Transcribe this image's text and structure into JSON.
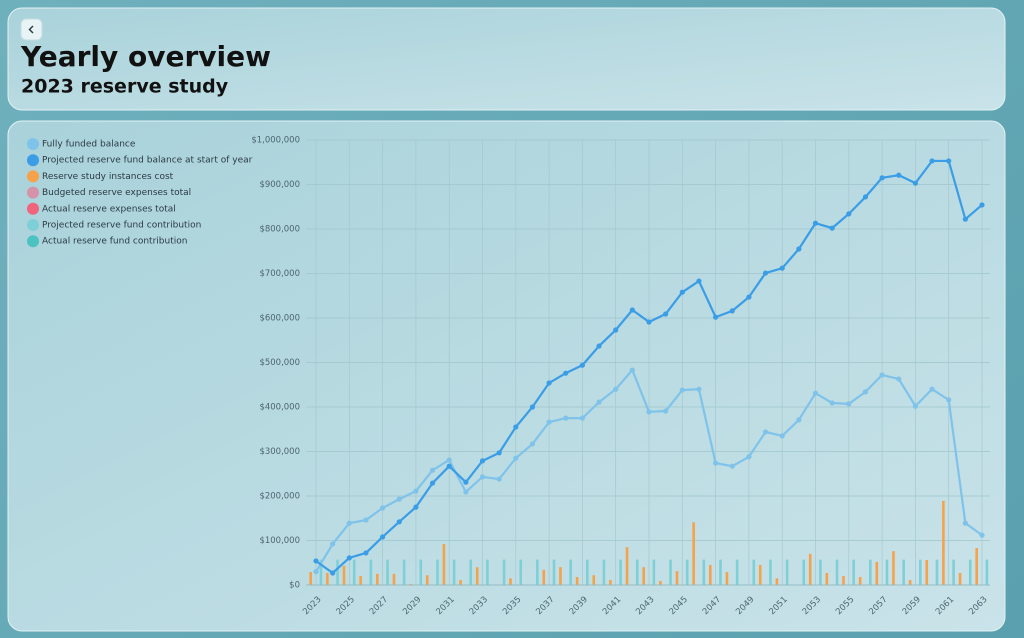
{
  "header": {
    "title": "Yearly overview",
    "subtitle": "2023 reserve study"
  },
  "chart_data": {
    "type": "bar-line",
    "categories": [
      "2023",
      null,
      "2025",
      null,
      "2027",
      null,
      "2029",
      null,
      "2031",
      null,
      "2033",
      null,
      "2035",
      null,
      "2037",
      null,
      "2039",
      null,
      "2041",
      null,
      "2043",
      null,
      "2045",
      null,
      "2047",
      null,
      "2049",
      null,
      "2051",
      null,
      "2053",
      null,
      "2055",
      null,
      "2057",
      null,
      "2059",
      null,
      "2061",
      null,
      "2063"
    ],
    "series": [
      {
        "name": "Fully funded balance",
        "kind": "line",
        "color": "#7fc3ea",
        "values": [
          30000,
          92000,
          139000,
          146000,
          173000,
          193000,
          211000,
          258000,
          281000,
          209000,
          243000,
          238000,
          285000,
          317000,
          366000,
          375000,
          375000,
          411000,
          440000,
          483000,
          389000,
          391000,
          438000,
          440000,
          274000,
          267000,
          288000,
          344000,
          335000,
          371000,
          431000,
          409000,
          407000,
          434000,
          472000,
          463000,
          402000,
          440000,
          416000,
          139000,
          112000
        ]
      },
      {
        "name": "Projected reserve fund balance at start of year",
        "kind": "line",
        "color": "#3a9de6",
        "values": [
          54000,
          27000,
          61000,
          72000,
          108000,
          142000,
          175000,
          229000,
          267000,
          231000,
          279000,
          297000,
          355000,
          400000,
          454000,
          476000,
          494000,
          537000,
          573000,
          618000,
          591000,
          609000,
          658000,
          683000,
          602000,
          616000,
          647000,
          701000,
          712000,
          755000,
          813000,
          802000,
          834000,
          872000,
          915000,
          921000,
          903000,
          953000,
          953000,
          822000,
          854000
        ]
      },
      {
        "name": "Reserve study instances cost",
        "kind": "bar",
        "color": "#f6a24a",
        "values": [
          29000,
          27000,
          43000,
          20000,
          25000,
          25000,
          2000,
          22000,
          92000,
          11000,
          40000,
          null,
          15000,
          null,
          34000,
          40000,
          18000,
          22000,
          11000,
          85000,
          40000,
          9000,
          31000,
          141000,
          45000,
          29000,
          null,
          45000,
          15000,
          null,
          70000,
          27000,
          20000,
          18000,
          52000,
          76000,
          11000,
          56000,
          189000,
          27000,
          83000
        ]
      },
      {
        "name": "Budgeted reserve expenses total",
        "kind": "bar",
        "color": "#d493a8",
        "values": [
          null,
          null,
          null,
          null,
          null,
          null,
          null,
          null,
          null,
          null,
          null,
          null,
          null,
          null,
          null,
          null,
          null,
          null,
          null,
          null,
          null,
          null,
          null,
          null,
          null,
          null,
          null,
          null,
          null,
          null,
          null,
          null,
          null,
          null,
          null,
          null,
          null,
          null,
          null,
          null,
          null
        ]
      },
      {
        "name": "Actual reserve expenses total",
        "kind": "bar",
        "color": "#f0647c",
        "values": [
          null,
          null,
          null,
          null,
          null,
          null,
          null,
          null,
          null,
          null,
          null,
          null,
          null,
          null,
          null,
          null,
          null,
          null,
          null,
          null,
          null,
          null,
          null,
          null,
          null,
          null,
          null,
          null,
          null,
          null,
          null,
          null,
          null,
          null,
          null,
          null,
          null,
          null,
          null,
          null,
          null
        ]
      },
      {
        "name": "Projected reserve fund contribution",
        "kind": "bar",
        "color": "#7fd0d6",
        "values": [
          57000,
          57000,
          57000,
          57000,
          57000,
          57000,
          57000,
          57000,
          57000,
          57000,
          57000,
          57000,
          57000,
          57000,
          57000,
          57000,
          57000,
          57000,
          57000,
          57000,
          57000,
          57000,
          57000,
          57000,
          57000,
          57000,
          57000,
          57000,
          57000,
          57000,
          57000,
          57000,
          57000,
          57000,
          57000,
          57000,
          57000,
          57000,
          57000,
          57000,
          57000
        ]
      },
      {
        "name": "Actual reserve fund contribution",
        "kind": "bar",
        "color": "#4cc3c0",
        "values": [
          null,
          null,
          null,
          null,
          null,
          null,
          null,
          null,
          null,
          null,
          null,
          null,
          null,
          null,
          null,
          null,
          null,
          null,
          null,
          null,
          null,
          null,
          null,
          null,
          null,
          null,
          null,
          null,
          null,
          null,
          null,
          null,
          null,
          null,
          null,
          null,
          null,
          null,
          null,
          null,
          null
        ]
      }
    ],
    "ylim": [
      0,
      1000000
    ],
    "yticks": [
      {
        "value": 0,
        "label": "$0"
      },
      {
        "value": 100000,
        "label": "$100,000"
      },
      {
        "value": 200000,
        "label": "$200,000"
      },
      {
        "value": 300000,
        "label": "$300,000"
      },
      {
        "value": 400000,
        "label": "$400,000"
      },
      {
        "value": 500000,
        "label": "$500,000"
      },
      {
        "value": 600000,
        "label": "$600,000"
      },
      {
        "value": 700000,
        "label": "$700,000"
      },
      {
        "value": 800000,
        "label": "$800,000"
      },
      {
        "value": 900000,
        "label": "$900,000"
      },
      {
        "value": 1000000,
        "label": "$1,000,000"
      }
    ],
    "grid": true,
    "legend": "left"
  }
}
